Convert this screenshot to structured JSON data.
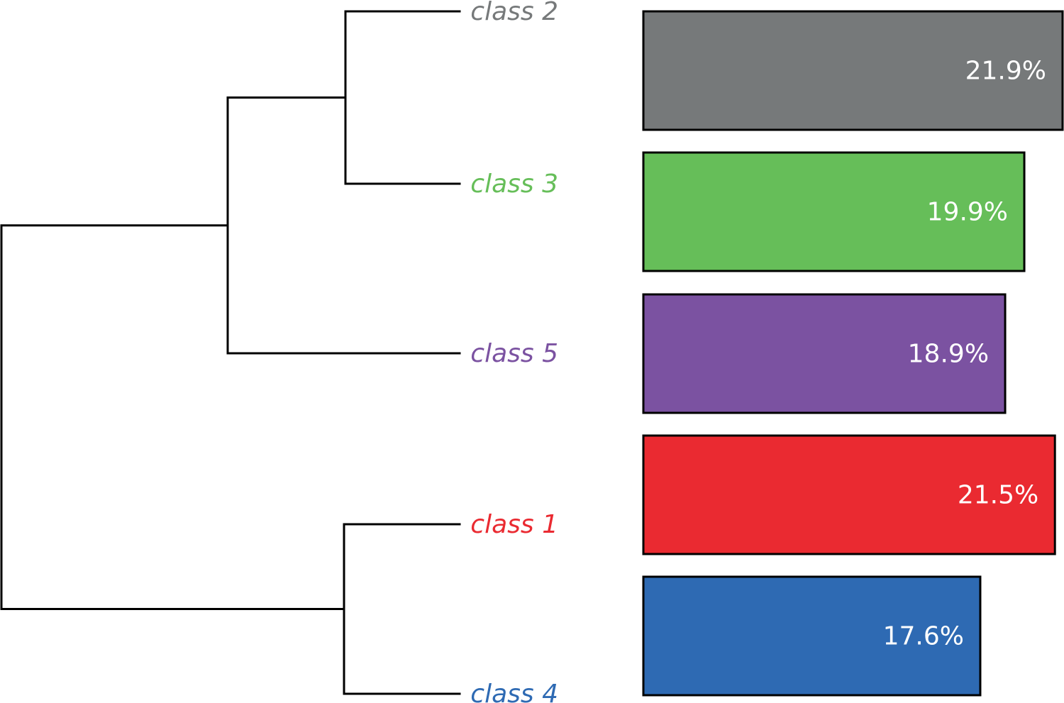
{
  "chart_data": {
    "type": "bar",
    "orientation": "horizontal",
    "title": "",
    "xlabel": "",
    "ylabel": "",
    "grid": false,
    "legend": "none",
    "xlim": [
      0,
      21.9
    ],
    "categories": [
      "class 2",
      "class 3",
      "class 5",
      "class 1",
      "class 4"
    ],
    "values": [
      21.9,
      19.9,
      18.9,
      21.5,
      17.6
    ],
    "value_labels": [
      "21.9%",
      "19.9%",
      "18.9%",
      "21.5%",
      "17.6%"
    ],
    "colors": [
      "#76797a",
      "#66be59",
      "#7b52a1",
      "#ea2a31",
      "#2e6ab3"
    ],
    "dendrogram": {
      "leaf_order": [
        "class 2",
        "class 3",
        "class 5",
        "class 1",
        "class 4"
      ],
      "merges": [
        [
          "class 2",
          "class 3"
        ],
        [
          "class 2+class 3",
          "class 5"
        ],
        [
          "class 1",
          "class 4"
        ],
        [
          "class 2+class 3+class 5",
          "class 1+class 4"
        ]
      ]
    }
  }
}
